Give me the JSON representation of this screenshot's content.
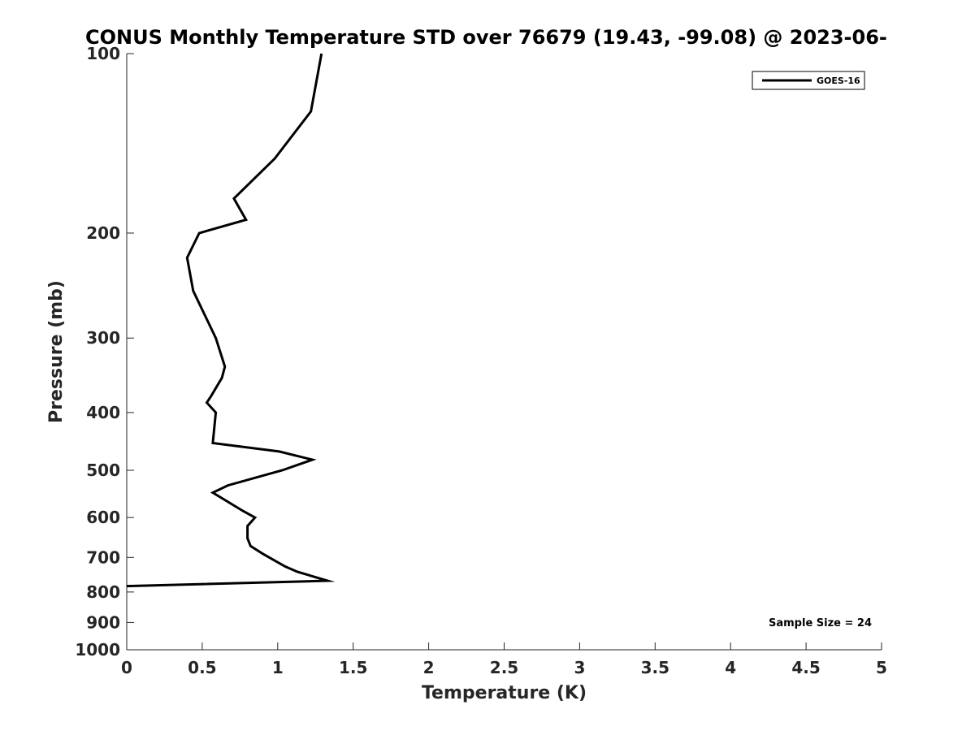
{
  "chart_data": {
    "type": "line",
    "title": "CONUS Monthly Temperature STD over 76679 (19.43, -99.08) @ 2023-06-",
    "xlabel": "Temperature (K)",
    "ylabel": "Pressure (mb)",
    "xlim": [
      0,
      5
    ],
    "ylim": [
      100,
      1000
    ],
    "y_scale": "log",
    "y_reversed": true,
    "grid": false,
    "x_ticks": [
      0,
      0.5,
      1,
      1.5,
      2,
      2.5,
      3,
      3.5,
      4,
      4.5,
      5
    ],
    "x_tick_labels": [
      "0",
      "0.5",
      "1",
      "1.5",
      "2",
      "2.5",
      "3",
      "3.5",
      "4",
      "4.5",
      "5"
    ],
    "y_ticks": [
      100,
      200,
      300,
      400,
      500,
      600,
      700,
      800,
      900,
      1000
    ],
    "y_tick_labels": [
      "100",
      "200",
      "300",
      "400",
      "500",
      "600",
      "700",
      "800",
      "900",
      "1000"
    ],
    "legend": {
      "position": "top-right",
      "entries": [
        "GOES-16"
      ]
    },
    "annotation": "Sample Size = 24",
    "series": [
      {
        "name": "GOES-16",
        "color": "#000000",
        "points": [
          [
            1.29,
            100
          ],
          [
            1.22,
            125
          ],
          [
            0.98,
            150
          ],
          [
            0.71,
            175
          ],
          [
            0.79,
            190
          ],
          [
            0.48,
            200
          ],
          [
            0.4,
            220
          ],
          [
            0.44,
            250
          ],
          [
            0.59,
            300
          ],
          [
            0.65,
            335
          ],
          [
            0.63,
            350
          ],
          [
            0.56,
            375
          ],
          [
            0.53,
            385
          ],
          [
            0.59,
            400
          ],
          [
            0.57,
            450
          ],
          [
            1.01,
            465
          ],
          [
            1.23,
            480
          ],
          [
            1.03,
            500
          ],
          [
            0.67,
            530
          ],
          [
            0.57,
            545
          ],
          [
            0.77,
            585
          ],
          [
            0.85,
            600
          ],
          [
            0.8,
            620
          ],
          [
            0.8,
            650
          ],
          [
            0.82,
            670
          ],
          [
            0.9,
            690
          ],
          [
            1.05,
            725
          ],
          [
            1.13,
            740
          ],
          [
            1.33,
            766
          ],
          [
            0.0,
            782
          ]
        ]
      }
    ]
  }
}
